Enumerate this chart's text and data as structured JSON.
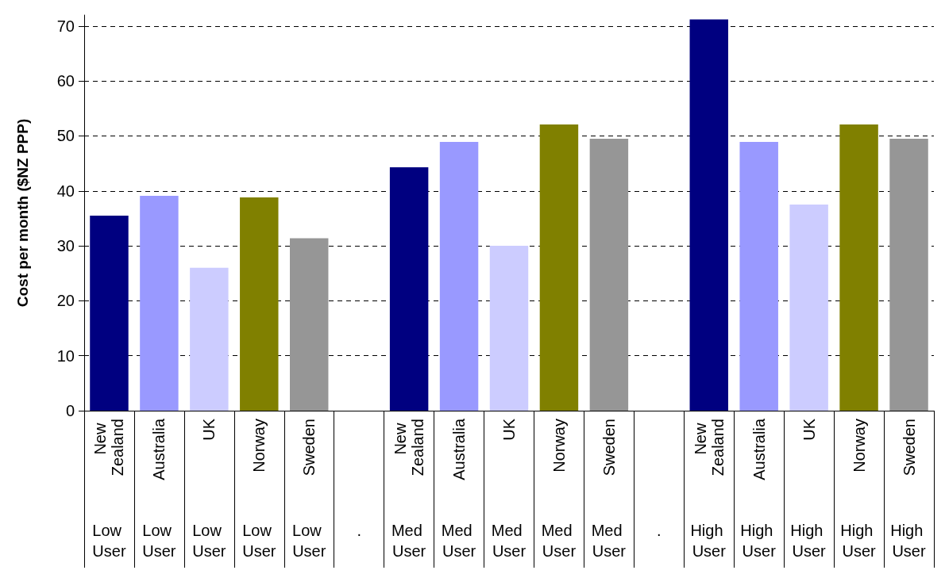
{
  "chart_data": {
    "type": "bar",
    "ylabel": "Cost per month ($NZ PPP)",
    "categories": [
      "New Zealand",
      "Australia",
      "UK",
      "Norway",
      "Sweden",
      null,
      "New Zealand",
      "Australia",
      "UK",
      "Norway",
      "Sweden",
      null,
      "New Zealand",
      "Australia",
      "UK",
      "Norway",
      "Sweden"
    ],
    "annotations": [
      "Low User",
      "Low User",
      "Low User",
      "Low User",
      "Low User",
      ".",
      "Med User",
      "Med User",
      "Med User",
      "Med User",
      "Med User",
      ".",
      "High User",
      "High User",
      "High User",
      "High User",
      "High User"
    ],
    "values": [
      35.5,
      39.1,
      26.0,
      38.8,
      31.4,
      null,
      44.3,
      48.9,
      30.0,
      52.1,
      49.5,
      null,
      71.2,
      48.9,
      37.5,
      52.1,
      49.5
    ],
    "colors": [
      "#000080",
      "#9999ff",
      "#ccccff",
      "#808000",
      "#969696",
      null,
      "#000080",
      "#9999ff",
      "#ccccff",
      "#808000",
      "#969696",
      null,
      "#000080",
      "#9999ff",
      "#ccccff",
      "#808000",
      "#969696"
    ],
    "ylim": [
      0,
      72
    ],
    "yticks": [
      0,
      10,
      20,
      30,
      40,
      50,
      60,
      70
    ],
    "grid": "y"
  }
}
